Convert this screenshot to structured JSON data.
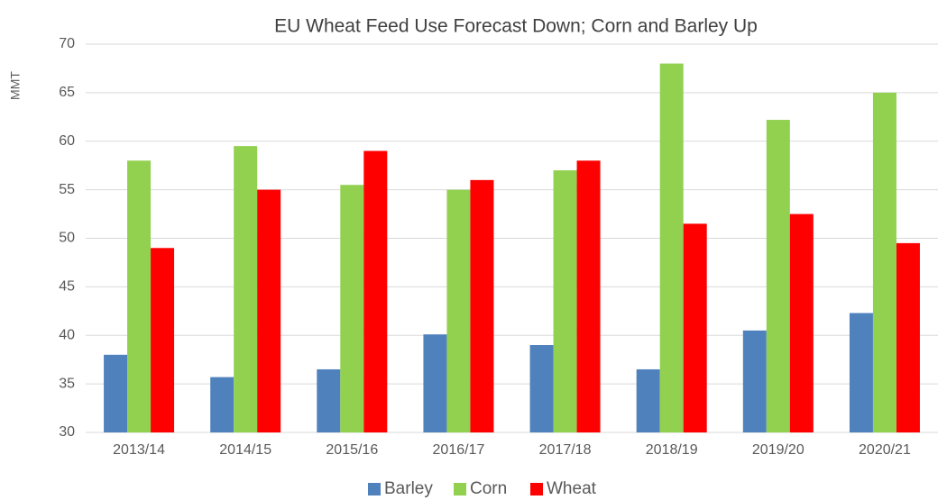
{
  "chart_data": {
    "type": "bar",
    "title": "EU Wheat Feed Use Forecast Down; Corn and Barley Up",
    "y_label": "MMT",
    "categories": [
      "2013/14",
      "2014/15",
      "2015/16",
      "2016/17",
      "2017/18",
      "2018/19",
      "2019/20",
      "2020/21"
    ],
    "series": [
      {
        "name": "Barley",
        "color": "#4f81bd",
        "values": [
          38,
          35.7,
          36.5,
          40.1,
          39,
          36.5,
          40.5,
          42.3
        ]
      },
      {
        "name": "Corn",
        "color": "#92d050",
        "values": [
          58,
          59.5,
          55.5,
          55,
          57,
          68,
          62.2,
          65
        ]
      },
      {
        "name": "Wheat",
        "color": "#ff0000",
        "values": [
          49,
          55,
          59,
          56,
          58,
          51.5,
          52.5,
          49.5
        ]
      }
    ],
    "ylim": [
      30,
      70
    ],
    "yticks": [
      30,
      35,
      40,
      45,
      50,
      55,
      60,
      65,
      70
    ],
    "grid": true,
    "legend": "bottom"
  }
}
